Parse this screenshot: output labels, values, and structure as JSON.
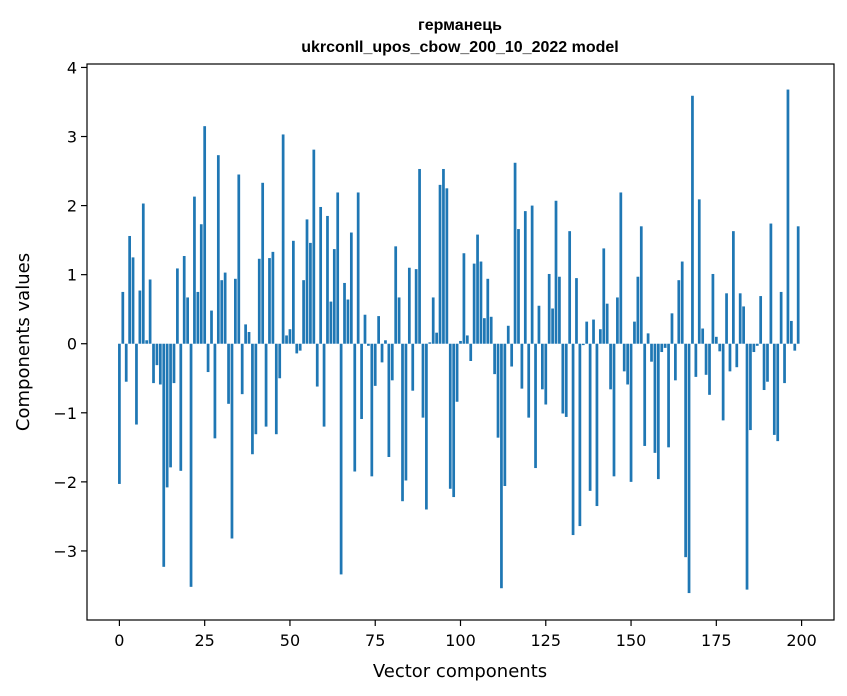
{
  "chart_data": {
    "type": "bar",
    "title": "германець",
    "subtitle": "ukrconll_upos_cbow_200_10_2022 model",
    "xlabel": "Vector components",
    "ylabel": "Components values",
    "xlim": [
      -9.5,
      209.5
    ],
    "ylim": [
      -4.0,
      4.05
    ],
    "x_ticks": [
      0,
      25,
      50,
      75,
      100,
      125,
      150,
      175,
      200
    ],
    "x_tick_labels": [
      "0",
      "25",
      "50",
      "75",
      "100",
      "125",
      "150",
      "175",
      "200"
    ],
    "y_ticks": [
      -3,
      -2,
      -1,
      0,
      1,
      2,
      3,
      4
    ],
    "y_tick_labels": [
      "−3",
      "−2",
      "−1",
      "0",
      "1",
      "2",
      "3",
      "4"
    ],
    "grid": false,
    "bar_color": "#1f77b4",
    "x": [
      0,
      1,
      2,
      3,
      4,
      5,
      6,
      7,
      8,
      9,
      10,
      11,
      12,
      13,
      14,
      15,
      16,
      17,
      18,
      19,
      20,
      21,
      22,
      23,
      24,
      25,
      26,
      27,
      28,
      29,
      30,
      31,
      32,
      33,
      34,
      35,
      36,
      37,
      38,
      39,
      40,
      41,
      42,
      43,
      44,
      45,
      46,
      47,
      48,
      49,
      50,
      51,
      52,
      53,
      54,
      55,
      56,
      57,
      58,
      59,
      60,
      61,
      62,
      63,
      64,
      65,
      66,
      67,
      68,
      69,
      70,
      71,
      72,
      73,
      74,
      75,
      76,
      77,
      78,
      79,
      80,
      81,
      82,
      83,
      84,
      85,
      86,
      87,
      88,
      89,
      90,
      91,
      92,
      93,
      94,
      95,
      96,
      97,
      98,
      99,
      100,
      101,
      102,
      103,
      104,
      105,
      106,
      107,
      108,
      109,
      110,
      111,
      112,
      113,
      114,
      115,
      116,
      117,
      118,
      119,
      120,
      121,
      122,
      123,
      124,
      125,
      126,
      127,
      128,
      129,
      130,
      131,
      132,
      133,
      134,
      135,
      136,
      137,
      138,
      139,
      140,
      141,
      142,
      143,
      144,
      145,
      146,
      147,
      148,
      149,
      150,
      151,
      152,
      153,
      154,
      155,
      156,
      157,
      158,
      159,
      160,
      161,
      162,
      163,
      164,
      165,
      166,
      167,
      168,
      169,
      170,
      171,
      172,
      173,
      174,
      175,
      176,
      177,
      178,
      179,
      180,
      181,
      182,
      183,
      184,
      185,
      186,
      187,
      188,
      189,
      190,
      191,
      192,
      193,
      194,
      195,
      196,
      197,
      198,
      199
    ],
    "values": [
      -2.03,
      0.75,
      -0.55,
      1.56,
      1.25,
      -1.17,
      0.77,
      2.03,
      0.05,
      0.93,
      -0.57,
      -0.31,
      -0.59,
      -3.23,
      -2.08,
      -1.79,
      -0.57,
      1.09,
      -1.84,
      1.27,
      0.67,
      -3.52,
      2.13,
      0.75,
      1.73,
      3.15,
      -0.41,
      0.48,
      -1.37,
      2.73,
      0.92,
      1.03,
      -0.87,
      -2.82,
      0.94,
      2.45,
      -0.73,
      0.28,
      0.17,
      -1.6,
      -1.31,
      1.23,
      2.33,
      -1.2,
      1.24,
      1.33,
      -1.31,
      -0.5,
      3.03,
      0.12,
      0.21,
      1.49,
      -0.14,
      -0.1,
      0.92,
      1.8,
      1.46,
      2.81,
      -0.62,
      1.98,
      -1.2,
      1.85,
      0.61,
      1.37,
      2.19,
      -3.34,
      0.88,
      0.64,
      1.61,
      -1.85,
      2.19,
      -1.09,
      0.42,
      -0.03,
      -1.92,
      -0.61,
      0.4,
      -0.27,
      0.05,
      -1.64,
      -0.53,
      1.41,
      0.67,
      -2.28,
      -1.98,
      1.1,
      -0.68,
      1.08,
      2.53,
      -1.07,
      -2.4,
      0.02,
      0.67,
      0.16,
      2.3,
      2.53,
      2.25,
      -2.1,
      -2.22,
      -0.84,
      0.04,
      1.31,
      0.12,
      -0.25,
      1.16,
      1.58,
      1.19,
      0.37,
      0.94,
      0.39,
      -0.44,
      -1.36,
      -3.54,
      -2.06,
      0.26,
      -0.33,
      2.62,
      1.66,
      -0.65,
      1.92,
      -1.07,
      2.0,
      -1.8,
      0.55,
      -0.66,
      -0.88,
      1.01,
      0.51,
      2.07,
      0.97,
      -1.01,
      -1.06,
      1.63,
      -2.77,
      0.95,
      -2.64,
      -0.02,
      0.32,
      -2.13,
      0.35,
      -2.35,
      0.21,
      1.38,
      0.58,
      -0.66,
      -1.92,
      0.67,
      2.19,
      -0.4,
      -0.59,
      -2.0,
      0.32,
      0.97,
      1.7,
      -1.48,
      0.15,
      -0.26,
      -1.58,
      -1.96,
      -0.12,
      -0.06,
      -1.5,
      0.44,
      -0.53,
      0.92,
      1.19,
      -3.09,
      -3.61,
      3.59,
      -0.48,
      2.09,
      0.22,
      -0.45,
      -0.74,
      1.01,
      0.1,
      -0.11,
      -1.11,
      0.73,
      -0.4,
      1.63,
      -0.34,
      0.73,
      0.54,
      -3.56,
      -1.25,
      -0.12,
      -0.03,
      0.69,
      -0.67,
      -0.55,
      1.74,
      -1.32,
      -1.41,
      0.75,
      -0.57,
      3.68,
      0.33,
      -0.1,
      1.7
    ]
  }
}
